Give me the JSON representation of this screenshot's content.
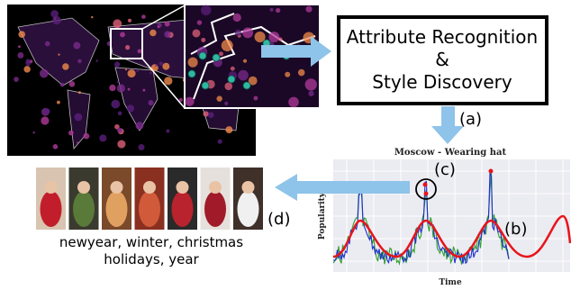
{
  "box": {
    "lines": [
      "Attribute Recognition",
      "&",
      "Style Discovery"
    ]
  },
  "labels": {
    "a": "(a)",
    "b": "(b)",
    "c": "(c)",
    "d": "(d)"
  },
  "chart": {
    "title": "Moscow - Wearing hat",
    "y_label": "Popularity",
    "x_label": "Time"
  },
  "caption": {
    "lines": [
      "newyear, winter, christmas",
      "holidays, year"
    ]
  }
}
